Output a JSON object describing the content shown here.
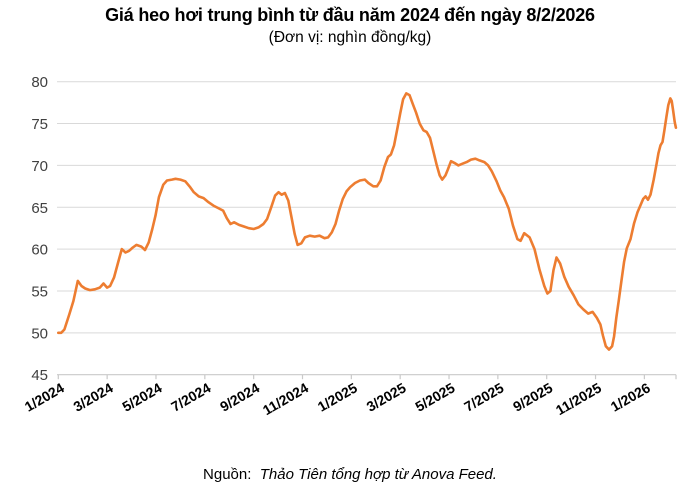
{
  "header": {
    "title": "Giá heo hơi trung bình từ đầu năm 2024 đến ngày 8/2/2026",
    "subtitle": "(Đơn vị: nghìn đồng/kg)"
  },
  "footer": {
    "source_label": "Nguồn:",
    "source_text": "Thảo Tiên tổng hợp từ Anova Feed."
  },
  "chart_data": {
    "type": "line",
    "title": "Giá heo hơi trung bình từ đầu năm 2024 đến ngày 8/2/2026",
    "subtitle_unit": "(Đơn vị: nghìn đồng/kg)",
    "series_name": "Giá heo hơi trung bình (nghìn đồng/kg)",
    "colors": {
      "line": "#ED7D31",
      "grid": "#D9D9D9",
      "axis": "#C9C9C9",
      "y_label": "#404040",
      "x_label": "#000000"
    },
    "grid": true,
    "legend": "none",
    "ylim": [
      45,
      80
    ],
    "y_ticks": [
      45,
      50,
      55,
      60,
      65,
      70,
      75,
      80
    ],
    "x_axis_note": "months measured from 1/2024 = 0; series ends 8/2/2026",
    "x_range_months": [
      0,
      25.29
    ],
    "x_tick_months": [
      0,
      2,
      4,
      6,
      8,
      10,
      12,
      14,
      16,
      18,
      20,
      22,
      24
    ],
    "x_tick_labels": [
      "1/2024",
      "3/2024",
      "5/2024",
      "7/2024",
      "9/2024",
      "11/2024",
      "1/2025",
      "3/2025",
      "5/2025",
      "7/2025",
      "9/2025",
      "11/2025",
      "1/2026"
    ],
    "points": [
      [
        0.0,
        50.0
      ],
      [
        0.12,
        50.0
      ],
      [
        0.25,
        50.4
      ],
      [
        0.45,
        52.2
      ],
      [
        0.62,
        53.8
      ],
      [
        0.8,
        56.2
      ],
      [
        0.95,
        55.6
      ],
      [
        1.1,
        55.3
      ],
      [
        1.3,
        55.1
      ],
      [
        1.5,
        55.2
      ],
      [
        1.7,
        55.4
      ],
      [
        1.85,
        55.9
      ],
      [
        2.0,
        55.4
      ],
      [
        2.12,
        55.6
      ],
      [
        2.28,
        56.6
      ],
      [
        2.45,
        58.4
      ],
      [
        2.6,
        60.0
      ],
      [
        2.75,
        59.6
      ],
      [
        2.9,
        59.8
      ],
      [
        3.05,
        60.2
      ],
      [
        3.2,
        60.5
      ],
      [
        3.4,
        60.3
      ],
      [
        3.55,
        59.9
      ],
      [
        3.7,
        60.8
      ],
      [
        3.85,
        62.4
      ],
      [
        3.98,
        64.0
      ],
      [
        4.12,
        66.2
      ],
      [
        4.3,
        67.7
      ],
      [
        4.45,
        68.2
      ],
      [
        4.65,
        68.3
      ],
      [
        4.8,
        68.4
      ],
      [
        5.0,
        68.3
      ],
      [
        5.2,
        68.1
      ],
      [
        5.4,
        67.4
      ],
      [
        5.55,
        66.8
      ],
      [
        5.75,
        66.3
      ],
      [
        5.95,
        66.1
      ],
      [
        6.15,
        65.6
      ],
      [
        6.35,
        65.2
      ],
      [
        6.55,
        64.9
      ],
      [
        6.75,
        64.6
      ],
      [
        6.9,
        63.7
      ],
      [
        7.05,
        63.0
      ],
      [
        7.2,
        63.2
      ],
      [
        7.4,
        62.9
      ],
      [
        7.6,
        62.7
      ],
      [
        7.8,
        62.5
      ],
      [
        8.0,
        62.4
      ],
      [
        8.2,
        62.6
      ],
      [
        8.4,
        63.0
      ],
      [
        8.55,
        63.6
      ],
      [
        8.72,
        65.0
      ],
      [
        8.88,
        66.4
      ],
      [
        9.02,
        66.8
      ],
      [
        9.15,
        66.5
      ],
      [
        9.28,
        66.7
      ],
      [
        9.42,
        65.8
      ],
      [
        9.55,
        63.8
      ],
      [
        9.68,
        61.8
      ],
      [
        9.8,
        60.5
      ],
      [
        9.95,
        60.7
      ],
      [
        10.1,
        61.4
      ],
      [
        10.3,
        61.6
      ],
      [
        10.5,
        61.5
      ],
      [
        10.7,
        61.6
      ],
      [
        10.9,
        61.3
      ],
      [
        11.05,
        61.4
      ],
      [
        11.2,
        62.0
      ],
      [
        11.35,
        63.0
      ],
      [
        11.5,
        64.6
      ],
      [
        11.65,
        66.0
      ],
      [
        11.8,
        66.9
      ],
      [
        11.95,
        67.4
      ],
      [
        12.15,
        67.9
      ],
      [
        12.35,
        68.2
      ],
      [
        12.55,
        68.3
      ],
      [
        12.7,
        67.9
      ],
      [
        12.9,
        67.5
      ],
      [
        13.05,
        67.5
      ],
      [
        13.2,
        68.2
      ],
      [
        13.35,
        69.8
      ],
      [
        13.5,
        71.0
      ],
      [
        13.62,
        71.3
      ],
      [
        13.75,
        72.4
      ],
      [
        13.88,
        74.3
      ],
      [
        14.0,
        76.2
      ],
      [
        14.12,
        77.9
      ],
      [
        14.25,
        78.6
      ],
      [
        14.38,
        78.4
      ],
      [
        14.52,
        77.3
      ],
      [
        14.65,
        76.3
      ],
      [
        14.8,
        75.0
      ],
      [
        14.95,
        74.2
      ],
      [
        15.08,
        74.0
      ],
      [
        15.22,
        73.3
      ],
      [
        15.35,
        71.8
      ],
      [
        15.5,
        70.0
      ],
      [
        15.62,
        68.8
      ],
      [
        15.72,
        68.3
      ],
      [
        15.85,
        68.8
      ],
      [
        15.95,
        69.5
      ],
      [
        16.08,
        70.5
      ],
      [
        16.22,
        70.3
      ],
      [
        16.38,
        70.0
      ],
      [
        16.55,
        70.2
      ],
      [
        16.72,
        70.4
      ],
      [
        16.9,
        70.7
      ],
      [
        17.08,
        70.8
      ],
      [
        17.25,
        70.6
      ],
      [
        17.45,
        70.4
      ],
      [
        17.6,
        70.0
      ],
      [
        17.75,
        69.3
      ],
      [
        17.95,
        68.1
      ],
      [
        18.1,
        67.0
      ],
      [
        18.25,
        66.2
      ],
      [
        18.45,
        64.8
      ],
      [
        18.62,
        62.8
      ],
      [
        18.8,
        61.2
      ],
      [
        18.93,
        61.0
      ],
      [
        19.08,
        61.9
      ],
      [
        19.3,
        61.4
      ],
      [
        19.5,
        60.0
      ],
      [
        19.7,
        57.6
      ],
      [
        19.9,
        55.6
      ],
      [
        20.03,
        54.7
      ],
      [
        20.15,
        55.0
      ],
      [
        20.28,
        57.5
      ],
      [
        20.4,
        59.0
      ],
      [
        20.55,
        58.3
      ],
      [
        20.72,
        56.7
      ],
      [
        20.9,
        55.5
      ],
      [
        21.1,
        54.5
      ],
      [
        21.3,
        53.4
      ],
      [
        21.5,
        52.8
      ],
      [
        21.7,
        52.3
      ],
      [
        21.88,
        52.5
      ],
      [
        22.05,
        51.8
      ],
      [
        22.2,
        51.0
      ],
      [
        22.3,
        49.7
      ],
      [
        22.42,
        48.4
      ],
      [
        22.55,
        48.0
      ],
      [
        22.68,
        48.4
      ],
      [
        22.76,
        49.6
      ],
      [
        22.85,
        51.8
      ],
      [
        22.95,
        53.8
      ],
      [
        23.05,
        56.0
      ],
      [
        23.17,
        58.5
      ],
      [
        23.28,
        60.1
      ],
      [
        23.43,
        61.2
      ],
      [
        23.58,
        63.1
      ],
      [
        23.72,
        64.4
      ],
      [
        23.85,
        65.3
      ],
      [
        23.95,
        66.0
      ],
      [
        24.05,
        66.3
      ],
      [
        24.15,
        65.9
      ],
      [
        24.25,
        66.5
      ],
      [
        24.38,
        68.3
      ],
      [
        24.5,
        70.2
      ],
      [
        24.58,
        71.5
      ],
      [
        24.66,
        72.4
      ],
      [
        24.74,
        72.8
      ],
      [
        24.82,
        74.2
      ],
      [
        24.9,
        75.8
      ],
      [
        24.98,
        77.2
      ],
      [
        25.06,
        78.0
      ],
      [
        25.12,
        77.7
      ],
      [
        25.18,
        76.5
      ],
      [
        25.24,
        75.2
      ],
      [
        25.29,
        74.5
      ]
    ]
  }
}
